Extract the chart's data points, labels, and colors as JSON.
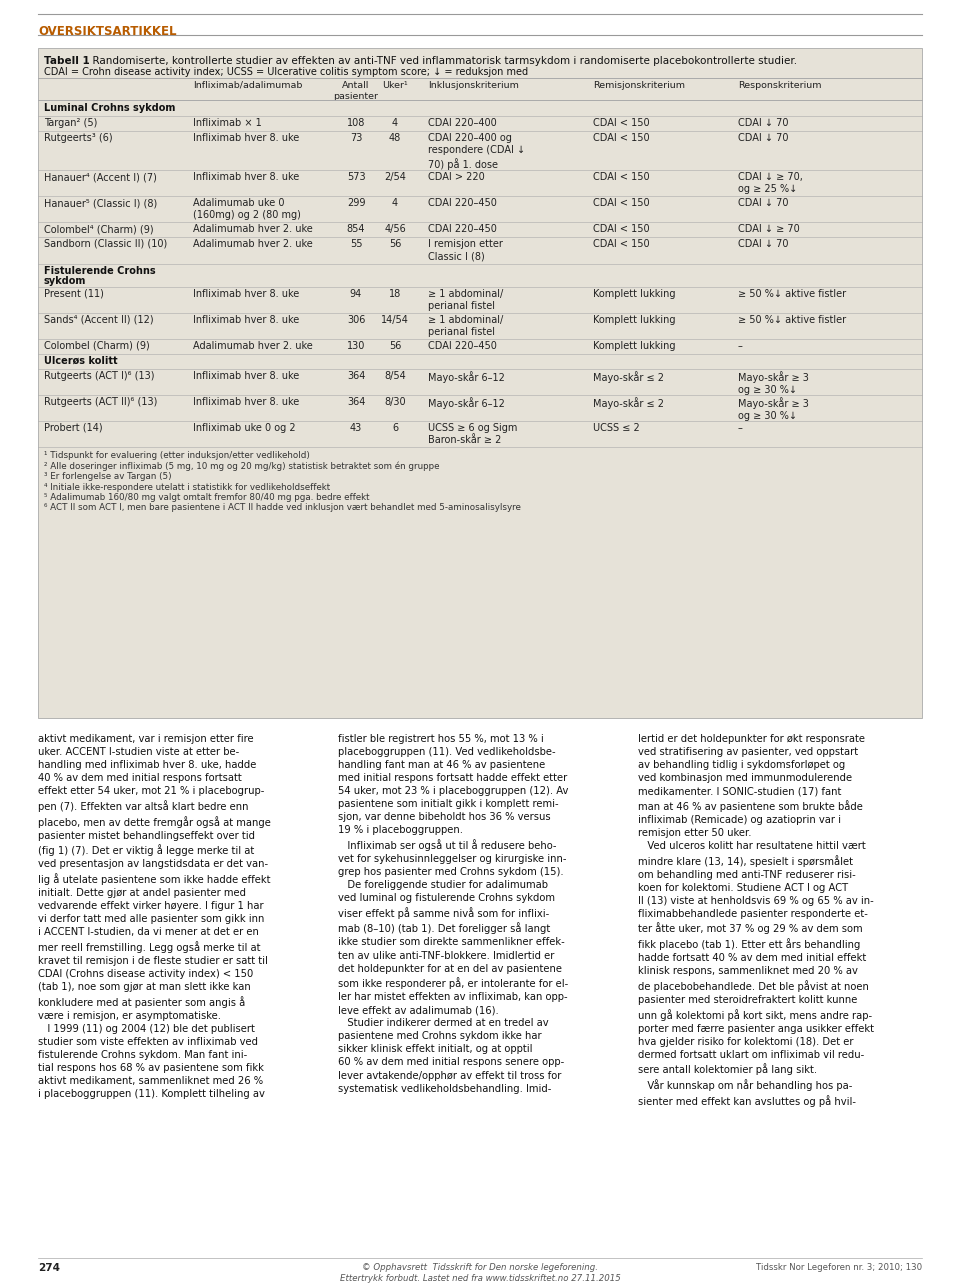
{
  "page_bg": "#f0ede6",
  "white_bg": "#ffffff",
  "header_text": "OVERSIKTSARTIKKEL",
  "header_color": "#b85c00",
  "table_bg": "#e6e2d8",
  "table_title_bold": "Tabell 1",
  "table_title_rest": "  Randomiserte, kontrollerte studier av effekten av anti-TNF ved inflammatorisk tarmsykdom i randomiserte placebokontrollerte studier.",
  "table_subtitle": "CDAI = Crohn disease activity index; UCSS = Ulcerative colitis symptom score; ↓ = reduksjon med",
  "col_headers": [
    "Infliximab/adalimumab",
    "Antall\npasienter",
    "Uker¹",
    "Inklusjonskriterium",
    "Remisjonskriterium",
    "Responskriterium"
  ],
  "section1": "Luminal Crohns sykdom",
  "section2_line1": "Fistulerende Crohns",
  "section2_line2": "sykdom",
  "section3": "Ulcerøs kolitt",
  "rows": [
    {
      "study": "Targan² (5)",
      "drug": "Infliximab × 1",
      "n": "108",
      "weeks": "4",
      "inclusion": "CDAI 220–400",
      "remission": "CDAI < 150",
      "response": "CDAI ↓ 70"
    },
    {
      "study": "Rutgeerts³ (6)",
      "drug": "Infliximab hver 8. uke",
      "n": "73",
      "weeks": "48",
      "inclusion": "CDAI 220–400 og\nrespondere (CDAI ↓\n70) på 1. dose",
      "remission": "CDAI < 150",
      "response": "CDAI ↓ 70"
    },
    {
      "study": "Hanauer⁴ (Accent I) (7)",
      "drug": "Infliximab hver 8. uke",
      "n": "573",
      "weeks": "2/54",
      "inclusion": "CDAI > 220",
      "remission": "CDAI < 150",
      "response": "CDAI ↓ ≥ 70,\nog ≥ 25 %↓"
    },
    {
      "study": "Hanauer⁵ (Classic I) (8)",
      "drug": "Adalimumab uke 0\n(160mg) og 2 (80 mg)",
      "n": "299",
      "weeks": "4",
      "inclusion": "CDAI 220–450",
      "remission": "CDAI < 150",
      "response": "CDAI ↓ 70"
    },
    {
      "study": "Colombel⁴ (Charm) (9)",
      "drug": "Adalimumab hver 2. uke",
      "n": "854",
      "weeks": "4/56",
      "inclusion": "CDAI 220–450",
      "remission": "CDAI < 150",
      "response": "CDAI ↓ ≥ 70"
    },
    {
      "study": "Sandborn (Classic II) (10)",
      "drug": "Adalimumab hver 2. uke",
      "n": "55",
      "weeks": "56",
      "inclusion": "I remisjon etter\nClassic I (8)",
      "remission": "CDAI < 150",
      "response": "CDAI ↓ 70"
    },
    {
      "study": "Present (11)",
      "drug": "Infliximab hver 8. uke",
      "n": "94",
      "weeks": "18",
      "inclusion": "≥ 1 abdominal/\nperianal fistel",
      "remission": "Komplett lukking",
      "response": "≥ 50 %↓ aktive fistler"
    },
    {
      "study": "Sands⁴ (Accent II) (12)",
      "drug": "Infliximab hver 8. uke",
      "n": "306",
      "weeks": "14/54",
      "inclusion": "≥ 1 abdominal/\nperianal fistel",
      "remission": "Komplett lukking",
      "response": "≥ 50 %↓ aktive fistler"
    },
    {
      "study": "Colombel (Charm) (9)",
      "drug": "Adalimumab hver 2. uke",
      "n": "130",
      "weeks": "56",
      "inclusion": "CDAI 220–450",
      "remission": "Komplett lukking",
      "response": "–"
    },
    {
      "study": "Rutgeerts (ACT I)⁶ (13)",
      "drug": "Infliximab hver 8. uke",
      "n": "364",
      "weeks": "8/54",
      "inclusion": "Mayo-skår 6–12",
      "remission": "Mayo-skår ≤ 2",
      "response": "Mayo-skår ≥ 3\nog ≥ 30 %↓"
    },
    {
      "study": "Rutgeerts (ACT II)⁶ (13)",
      "drug": "Infliximab hver 8. uke",
      "n": "364",
      "weeks": "8/30",
      "inclusion": "Mayo-skår 6–12",
      "remission": "Mayo-skår ≤ 2",
      "response": "Mayo-skår ≥ 3\nog ≥ 30 %↓"
    },
    {
      "study": "Probert (14)",
      "drug": "Infliximab uke 0 og 2",
      "n": "43",
      "weeks": "6",
      "inclusion": "UCSS ≥ 6 og Sigm\nBaron-skår ≥ 2",
      "remission": "UCSS ≤ 2",
      "response": "–"
    }
  ],
  "footnotes": [
    "¹ Tidspunkt for evaluering (etter induksjon/etter vedlikehold)",
    "² Alle doseringer infliximab (5 mg, 10 mg og 20 mg/kg) statistisk betraktet som én gruppe",
    "³ Er forlengelse av Targan (5)",
    "⁴ Initiale ikke-respondere utelatt i statistikk for vedlikeholdseffekt",
    "⁵ Adalimumab 160/80 mg valgt omtalt fremfor 80/40 mg pga. bedre effekt",
    "⁶ ACT II som ACT I, men bare pasientene i ACT II hadde ved inklusjon vært behandlet med 5-aminosalisylsyre"
  ],
  "body_col1": "aktivt medikament, var i remisjon etter fire\nuker. ACCENT I-studien viste at etter be-\nhandling med infliximab hver 8. uke, hadde\n40 % av dem med initial respons fortsatt\neffekt etter 54 uker, mot 21 % i placebogrup-\npen (7). Effekten var altså klart bedre enn\nplacebo, men av dette fremgår også at mange\npasienter mistet behandlingseffekt over tid\n(fig 1) (7). Det er viktig å legge merke til at\nved presentasjon av langstidsdata er det van-\nlig å utelate pasientene som ikke hadde effekt\ninitialt. Dette gjør at andel pasienter med\nvedvarende effekt virker høyere. I figur 1 har\nvi derfor tatt med alle pasienter som gikk inn\ni ACCENT I-studien, da vi mener at det er en\nmer reell fremstilling. Legg også merke til at\nkravet til remisjon i de fleste studier er satt til\nCDAI (Crohns disease activity index) < 150\n(tab 1), noe som gjør at man slett ikke kan\nkonkludere med at pasienter som angis å\nvære i remisjon, er asymptomatiske.\n   I 1999 (11) og 2004 (12) ble det publisert\nstudier som viste effekten av infliximab ved\nfistulerende Crohns sykdom. Man fant ini-\ntial respons hos 68 % av pasientene som fikk\naktivt medikament, sammenliknet med 26 %\ni placeboggruppen (11). Komplett tilheling av",
  "body_col2": "fistler ble registrert hos 55 %, mot 13 % i\nplaceboggruppen (11). Ved vedlikeholdsbe-\nhandling fant man at 46 % av pasientene\nmed initial respons fortsatt hadde effekt etter\n54 uker, mot 23 % i placeboggruppen (12). Av\npasientene som initialt gikk i komplett remi-\nsjon, var denne bibeholdt hos 36 % versus\n19 % i placeboggruppen.\n   Infliximab ser også ut til å redusere beho-\nvet for sykehusinnleggelser og kirurgiske inn-\ngrep hos pasienter med Crohns sykdom (15).\n   De foreliggende studier for adalimumab\nved luminal og fistulerende Crohns sykdom\nviser effekt på samme nivå som for inflixi-\nmab (8–10) (tab 1). Det foreligger så langt\nikke studier som direkte sammenlikner effek-\nten av ulike anti-TNF-blokkere. Imidlertid er\ndet holdepunkter for at en del av pasientene\nsom ikke responderer på, er intolerante for el-\nler har mistet effekten av infliximab, kan opp-\nleve effekt av adalimumab (16).\n   Studier indikerer dermed at en tredel av\npasientene med Crohns sykdom ikke har\nsikker klinisk effekt initialt, og at opptil\n60 % av dem med initial respons senere opp-\nlever avtakende/opphør av effekt til tross for\nsystematisk vedlikeholdsbehandling. Imid-",
  "body_col3": "lertid er det holdepunkter for økt responsrate\nved stratifisering av pasienter, ved oppstart\nav behandling tidlig i sykdomsforløpet og\nved kombinasjon med immunmodulerende\nmedikamenter. I SONIC-studien (17) fant\nman at 46 % av pasientene som brukte både\ninfliximab (Remicade) og azatioprin var i\nremisjon etter 50 uker.\n   Ved ulceros kolitt har resultatene hittil vært\nmindre klare (13, 14), spesielt i spørsmålet\nom behandling med anti-TNF reduserer risi-\nkoen for kolektomi. Studiene ACT I og ACT\nII (13) viste at henholdsvis 69 % og 65 % av in-\nfliximabbehandlede pasienter responderte et-\nter åtte uker, mot 37 % og 29 % av dem som\nfikk placebo (tab 1). Etter ett års behandling\nhadde fortsatt 40 % av dem med initial effekt\nklinisk respons, sammenliknet med 20 % av\nde placebobehandlede. Det ble påvist at noen\npasienter med steroidrefraktert kolitt kunne\nunn gå kolektomi på kort sikt, mens andre rap-\nporter med færre pasienter anga usikker effekt\nhva gjelder risiko for kolektomi (18). Det er\ndermed fortsatt uklart om infliximab vil redu-\nsere antall kolektomier på lang sikt.\n   Vår kunnskap om når behandling hos pa-\nsienter med effekt kan avsluttes og på hvil-",
  "footer_center": "© Opphavsrett  Tidsskrift for Den norske legeforening.\nEttertrykk forbudt. Lastet ned fra www.tidsskriftet.no 27.11.2015",
  "footer_right": "Tidsskr Nor Legeforen nr. 3; 2010; 130",
  "page_num": "274"
}
